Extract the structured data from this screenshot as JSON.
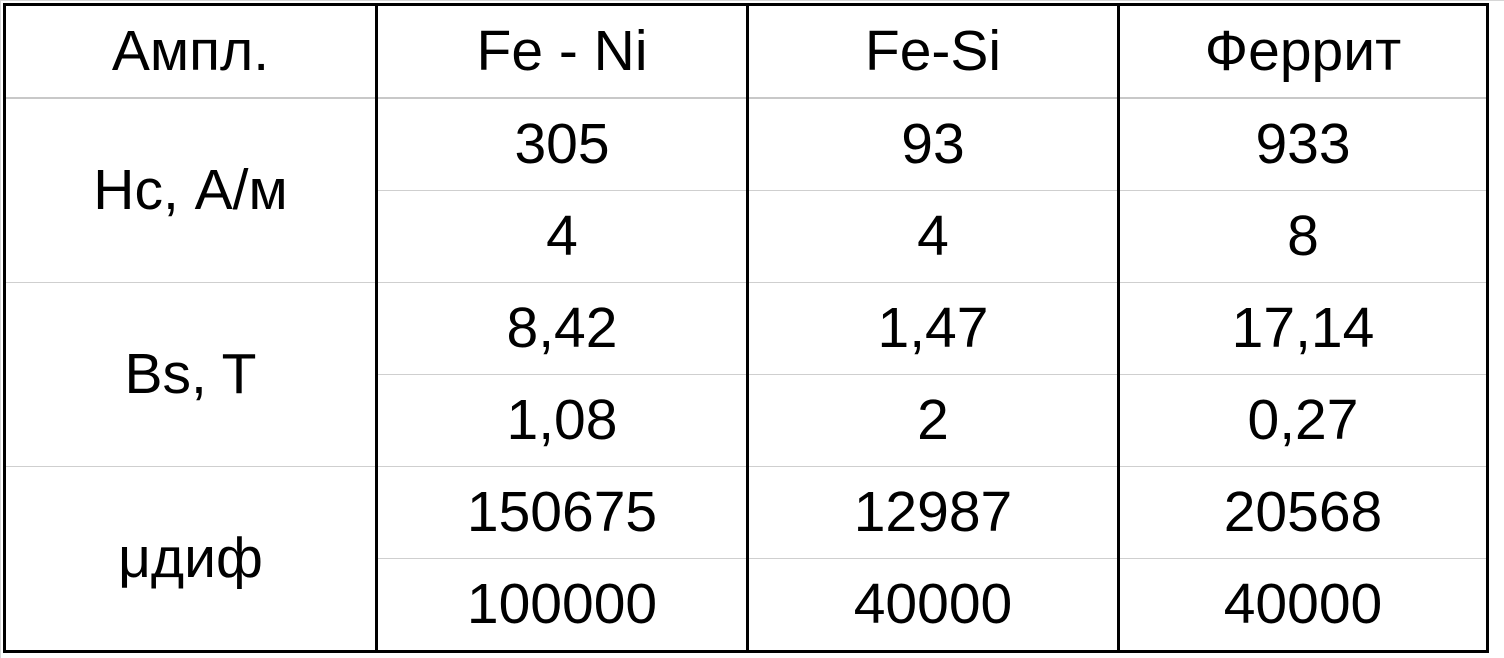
{
  "table": {
    "header": [
      "Ампл.",
      "Fe - Ni",
      "Fe-Si",
      "Феррит"
    ],
    "groups": [
      {
        "param": "Hc, А/м",
        "rows": [
          [
            "305",
            "93",
            "933"
          ],
          [
            "4",
            "4",
            "8"
          ]
        ]
      },
      {
        "param": "Bs, T",
        "rows": [
          [
            "8,42",
            "1,47",
            "17,14"
          ],
          [
            "1,08",
            "2",
            "0,27"
          ]
        ]
      },
      {
        "param": "μдиф",
        "rows": [
          [
            "150675",
            "12987",
            "20568"
          ],
          [
            "100000",
            "40000",
            "40000"
          ]
        ]
      }
    ]
  }
}
